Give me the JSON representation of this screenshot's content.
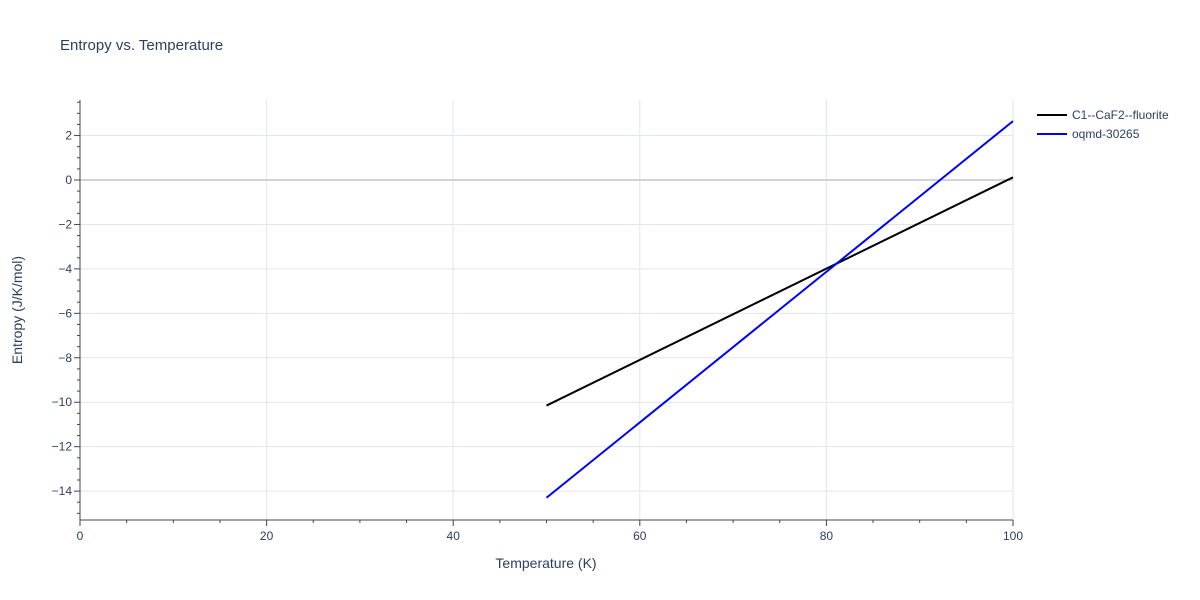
{
  "chart_data": {
    "type": "line",
    "title": "Entropy vs. Temperature",
    "xlabel": "Temperature (K)",
    "ylabel": "Entropy (J/K/mol)",
    "xlim": [
      0,
      100
    ],
    "ylim": [
      -15.3,
      3.6
    ],
    "x_ticks": [
      0,
      20,
      40,
      60,
      80,
      100
    ],
    "x_tick_labels": [
      "0",
      "20",
      "40",
      "60",
      "80",
      "100"
    ],
    "y_ticks": [
      2,
      0,
      -2,
      -4,
      -6,
      -8,
      -10,
      -12,
      -14
    ],
    "y_tick_labels": [
      "2",
      "0",
      "−2",
      "−4",
      "−6",
      "−8",
      "−10",
      "−12",
      "−14"
    ],
    "grid": true,
    "legend_position": "top-right",
    "series": [
      {
        "name": "C1--CaF2--fluorite",
        "color": "#000000",
        "x": [
          50,
          100
        ],
        "y": [
          -10.15,
          0.12
        ]
      },
      {
        "name": "oqmd-30265",
        "color": "#0000ff",
        "x": [
          50,
          100
        ],
        "y": [
          -14.3,
          2.65
        ]
      }
    ]
  }
}
